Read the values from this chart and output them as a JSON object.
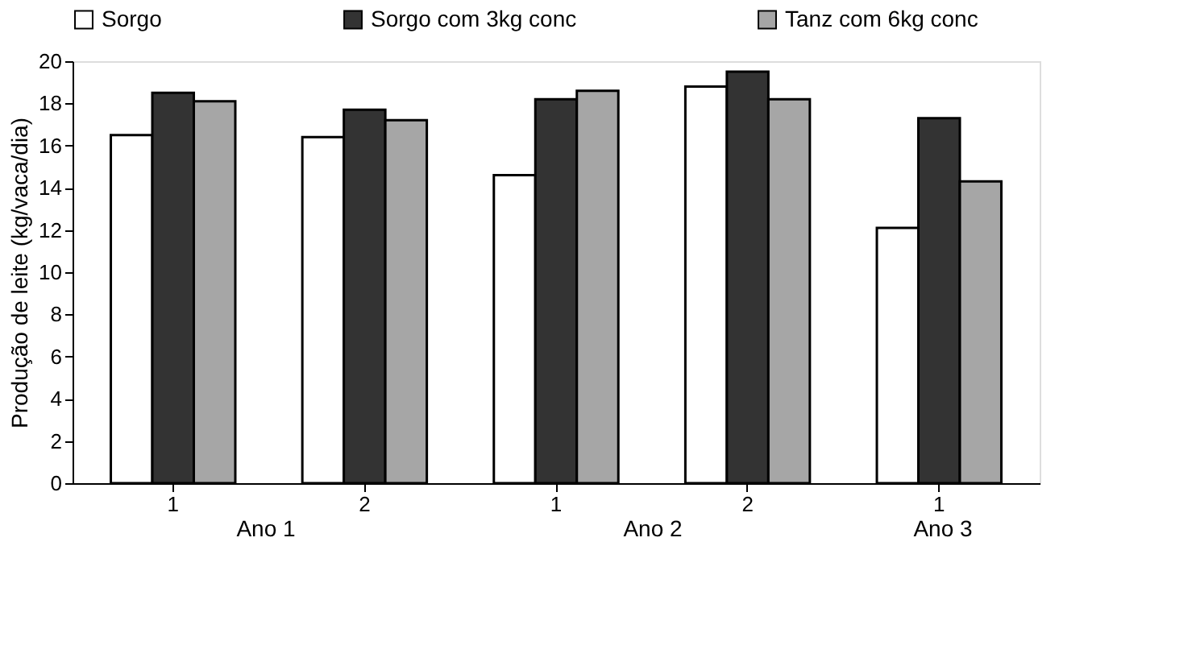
{
  "chart_data": {
    "type": "bar",
    "ylabel": "Produção de leite (kg/vaca/dia)",
    "categories": [
      "1",
      "2",
      "1",
      "2",
      "1"
    ],
    "annotations": [
      "Ano 1",
      "Ano 2",
      "Ano 3"
    ],
    "series": [
      {
        "name": "Sorgo",
        "color": "#ffffff",
        "values": [
          16.5,
          16.4,
          14.6,
          18.8,
          12.1
        ]
      },
      {
        "name": "Sorgo com 3kg conc",
        "color": "#333333",
        "values": [
          18.5,
          17.7,
          18.2,
          19.5,
          17.3
        ]
      },
      {
        "name": "Tanz com 6kg conc",
        "color": "#a6a6a6",
        "values": [
          18.1,
          17.2,
          18.6,
          18.2,
          14.3
        ]
      }
    ],
    "ylim": [
      0,
      20
    ],
    "yticks": [
      0,
      2,
      4,
      6,
      8,
      10,
      12,
      14,
      16,
      18,
      20
    ],
    "grid": false,
    "legend": "top"
  }
}
